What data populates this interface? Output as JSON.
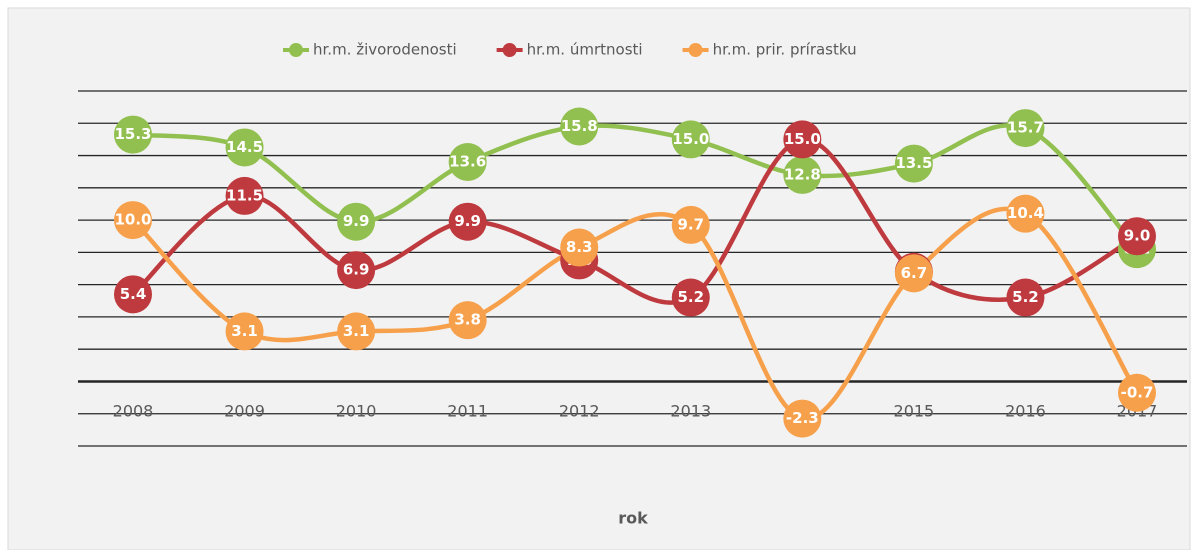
{
  "chart_data": {
    "type": "line",
    "x_label": "rok",
    "categories": [
      "2008",
      "2009",
      "2010",
      "2011",
      "2012",
      "2013",
      null,
      "2015",
      "2016",
      "2017"
    ],
    "series": [
      {
        "name": "hr.m. živorodenosti",
        "color": "#92c050",
        "values": [
          15.3,
          14.5,
          9.9,
          13.6,
          15.8,
          15.0,
          12.8,
          13.5,
          15.7,
          8.2
        ],
        "value_labels": [
          "15.3",
          "14.5",
          "9.9",
          "13.6",
          "15.8",
          "15.0",
          "12.8",
          "13.5",
          "15.7",
          "8.2"
        ]
      },
      {
        "name": "hr.m. úmrtnosti",
        "color": "#be3a3e",
        "values": [
          5.4,
          11.5,
          6.9,
          9.9,
          7.5,
          5.2,
          15.0,
          6.8,
          5.2,
          9.0
        ],
        "value_labels": [
          "5.4",
          "11.5",
          "6.9",
          "9.9",
          "7.5",
          "5.2",
          "15.0",
          null,
          "5.2",
          "9.0"
        ]
      },
      {
        "name": "hr.m. prir. prírastku",
        "color": "#f7a04b",
        "values": [
          10.0,
          3.1,
          3.1,
          3.8,
          8.3,
          9.7,
          -2.3,
          6.7,
          10.4,
          -0.7
        ],
        "value_labels": [
          "10.0",
          "3.1",
          "3.1",
          "3.8",
          "8.3",
          "9.7",
          "-2.3",
          "6.7",
          "10.4",
          "-0.7"
        ]
      }
    ],
    "ylim": [
      -4,
      18
    ],
    "yticks": [
      -4,
      -2,
      0,
      2,
      4,
      6,
      8,
      10,
      12,
      14,
      16,
      18
    ],
    "grid": true,
    "smooth": true,
    "legend": "top"
  }
}
